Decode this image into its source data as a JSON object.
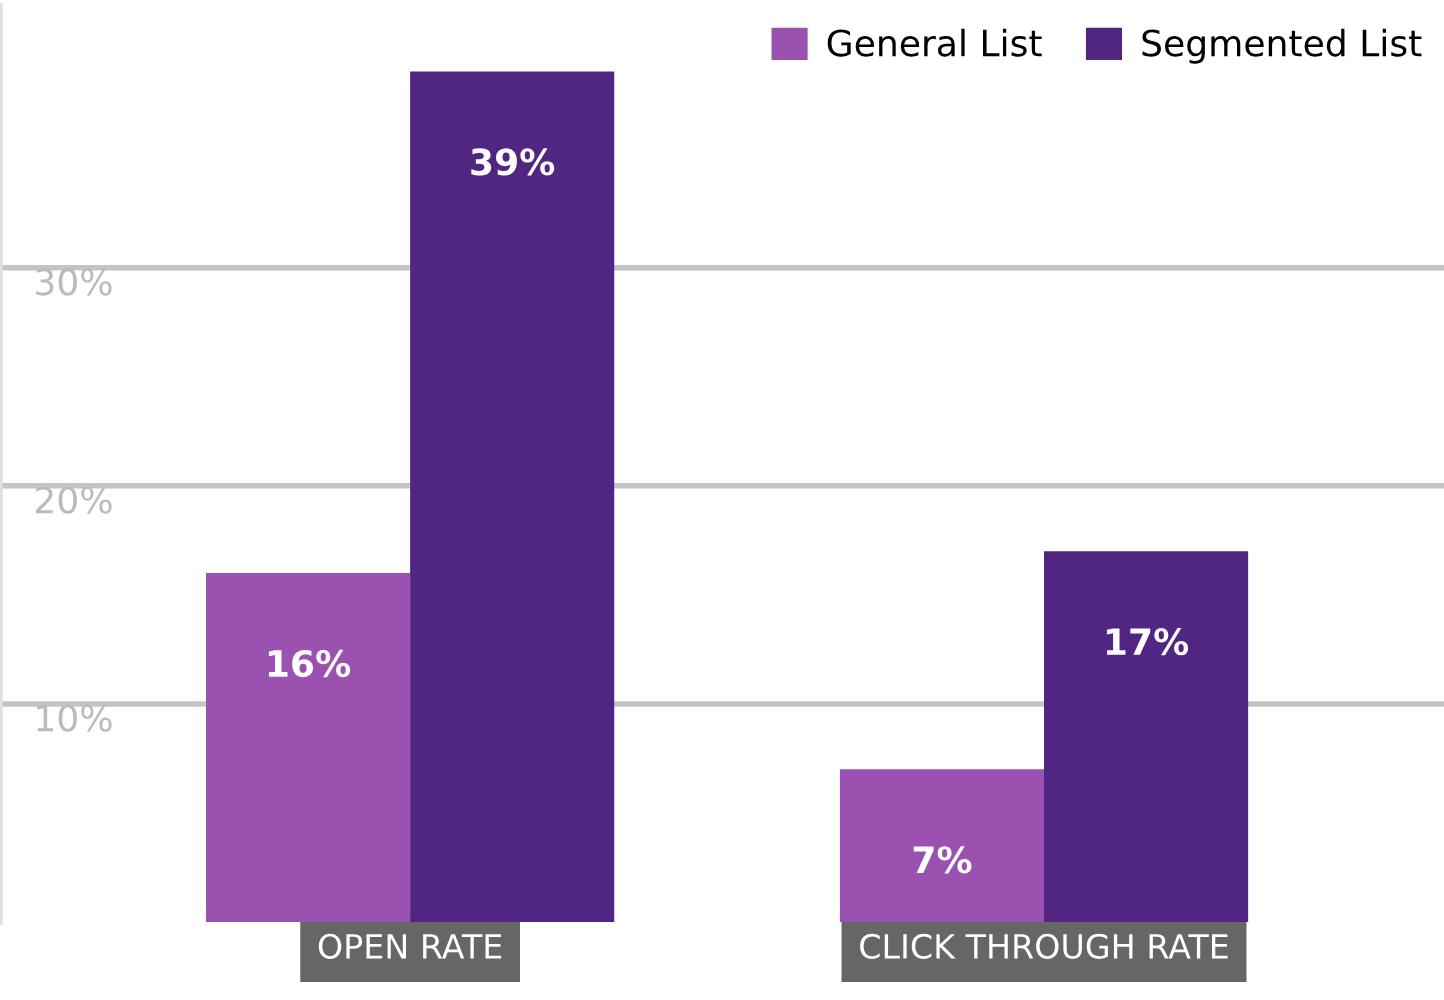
{
  "chart_data": {
    "type": "bar",
    "categories": [
      "OPEN RATE",
      "CLICK THROUGH RATE"
    ],
    "series": [
      {
        "name": "General List",
        "color": "#9b51b0",
        "values": [
          16,
          7
        ]
      },
      {
        "name": "Segmented List",
        "color": "#512682",
        "values": [
          39,
          17
        ]
      }
    ],
    "ylim": [
      0,
      42
    ],
    "yticks": [
      {
        "value": 10,
        "label": "10%"
      },
      {
        "value": 20,
        "label": "20%"
      },
      {
        "value": 30,
        "label": "30%"
      }
    ],
    "value_labels": [
      [
        "16%",
        "7%"
      ],
      [
        "39%",
        "17%"
      ]
    ],
    "grid": "y",
    "legend": "top right"
  }
}
